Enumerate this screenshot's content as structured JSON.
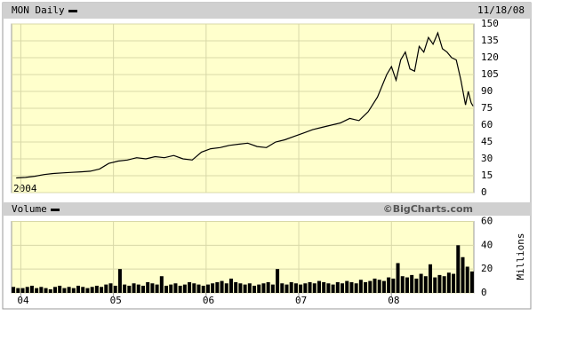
{
  "chart_data": [
    {
      "type": "line",
      "date_label": "11/18/08",
      "start_label": "2004",
      "x": [
        2003.95,
        2004.05,
        2004.15,
        2004.25,
        2004.35,
        2004.45,
        2004.55,
        2004.65,
        2004.75,
        2004.85,
        2004.95,
        2005.05,
        2005.15,
        2005.25,
        2005.35,
        2005.45,
        2005.55,
        2005.65,
        2005.75,
        2005.85,
        2005.95,
        2006.05,
        2006.15,
        2006.25,
        2006.35,
        2006.45,
        2006.55,
        2006.65,
        2006.75,
        2006.85,
        2006.95,
        2007.05,
        2007.15,
        2007.25,
        2007.35,
        2007.45,
        2007.55,
        2007.65,
        2007.75,
        2007.85,
        2007.95,
        2008.0,
        2008.05,
        2008.1,
        2008.15,
        2008.2,
        2008.25,
        2008.3,
        2008.35,
        2008.4,
        2008.45,
        2008.5,
        2008.55,
        2008.6,
        2008.65,
        2008.7,
        2008.75,
        2008.8,
        2008.83,
        2008.86,
        2008.88
      ],
      "series": [
        {
          "name": "MON Daily",
          "color": "#000000",
          "values": [
            13,
            13.5,
            14.5,
            16,
            17,
            17.5,
            18,
            18.5,
            19,
            21,
            26,
            28,
            29,
            31,
            30,
            32,
            31,
            33,
            30,
            29,
            36,
            39,
            40,
            42,
            43,
            44,
            41,
            40,
            45,
            47,
            50,
            53,
            56,
            58,
            60,
            62,
            66,
            64,
            72,
            85,
            105,
            112,
            100,
            118,
            125,
            110,
            108,
            130,
            125,
            138,
            132,
            142,
            128,
            125,
            120,
            118,
            100,
            78,
            90,
            80,
            77
          ]
        }
      ],
      "xlim": [
        2003.9,
        2008.89
      ],
      "ylim": [
        0,
        150
      ],
      "yticks": [
        0,
        15,
        30,
        45,
        60,
        75,
        90,
        105,
        120,
        135,
        150
      ],
      "grid": true
    },
    {
      "type": "bar",
      "credit": "©BigCharts.com",
      "y_label": "Millions",
      "x": [
        2003.92,
        2003.97,
        2004.02,
        2004.07,
        2004.12,
        2004.17,
        2004.22,
        2004.27,
        2004.32,
        2004.37,
        2004.42,
        2004.47,
        2004.52,
        2004.57,
        2004.62,
        2004.67,
        2004.72,
        2004.77,
        2004.82,
        2004.87,
        2004.92,
        2004.97,
        2005.02,
        2005.07,
        2005.12,
        2005.17,
        2005.22,
        2005.27,
        2005.32,
        2005.37,
        2005.42,
        2005.47,
        2005.52,
        2005.57,
        2005.62,
        2005.67,
        2005.72,
        2005.77,
        2005.82,
        2005.87,
        2005.92,
        2005.97,
        2006.02,
        2006.07,
        2006.12,
        2006.17,
        2006.22,
        2006.27,
        2006.32,
        2006.37,
        2006.42,
        2006.47,
        2006.52,
        2006.57,
        2006.62,
        2006.67,
        2006.72,
        2006.77,
        2006.82,
        2006.87,
        2006.92,
        2006.97,
        2007.02,
        2007.07,
        2007.12,
        2007.17,
        2007.22,
        2007.27,
        2007.32,
        2007.37,
        2007.42,
        2007.47,
        2007.52,
        2007.57,
        2007.62,
        2007.67,
        2007.72,
        2007.77,
        2007.82,
        2007.87,
        2007.92,
        2007.97,
        2008.02,
        2008.07,
        2008.12,
        2008.17,
        2008.22,
        2008.27,
        2008.32,
        2008.37,
        2008.42,
        2008.47,
        2008.52,
        2008.57,
        2008.62,
        2008.67,
        2008.72,
        2008.77,
        2008.82,
        2008.87
      ],
      "series": [
        {
          "name": "Volume",
          "color": "#000000",
          "values": [
            5,
            4,
            4,
            5,
            6,
            4,
            5,
            4,
            3,
            5,
            6,
            4,
            5,
            4,
            6,
            5,
            4,
            5,
            6,
            5,
            7,
            8,
            6,
            20,
            7,
            6,
            8,
            7,
            6,
            9,
            8,
            7,
            14,
            6,
            7,
            8,
            6,
            7,
            9,
            8,
            7,
            6,
            7,
            8,
            9,
            10,
            8,
            12,
            9,
            8,
            7,
            8,
            6,
            7,
            8,
            9,
            7,
            20,
            8,
            7,
            9,
            8,
            7,
            8,
            9,
            8,
            10,
            9,
            8,
            7,
            9,
            8,
            10,
            9,
            8,
            11,
            9,
            10,
            12,
            11,
            10,
            13,
            12,
            25,
            14,
            13,
            15,
            12,
            16,
            14,
            24,
            13,
            15,
            14,
            17,
            16,
            40,
            30,
            22,
            18
          ]
        }
      ],
      "xlim": [
        2003.9,
        2008.89
      ],
      "xticks": [
        {
          "value": 2004,
          "label": "04"
        },
        {
          "value": 2005,
          "label": "05"
        },
        {
          "value": 2006,
          "label": "06"
        },
        {
          "value": 2007,
          "label": "07"
        },
        {
          "value": 2008,
          "label": "08"
        }
      ],
      "ylim": [
        0,
        60
      ],
      "yticks": [
        0,
        20,
        40,
        60
      ],
      "grid": true
    }
  ]
}
